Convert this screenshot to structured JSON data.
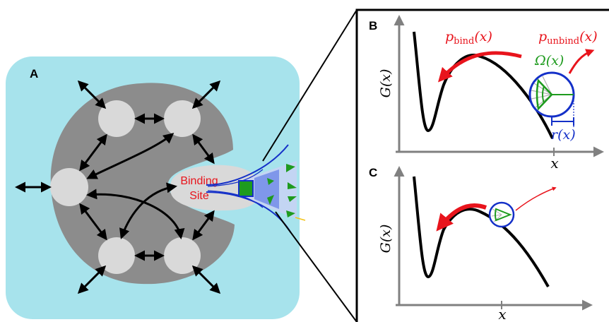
{
  "panels": {
    "a": {
      "letter": "A"
    },
    "b": {
      "letter": "B"
    },
    "c": {
      "letter": "C"
    }
  },
  "binding_site": {
    "line1": "Binding",
    "line2": "Site"
  },
  "labels": {
    "p_bind_main": "p",
    "p_bind_sub": "bind",
    "p_bind_arg": "(x)",
    "p_unbind_main": "p",
    "p_unbind_sub": "unbind",
    "p_unbind_arg": "(x)",
    "omega": "Ω(x)",
    "radius": "r(x)",
    "g_axis": "G(x)",
    "x_axis": "x"
  },
  "colors": {
    "protein_bg": "#a7e3ec",
    "protein_body": "#8c8c8c",
    "node": "#d9d9d9",
    "red": "#e8141c",
    "green": "#1e9b1e",
    "blue": "#1430c8",
    "axis": "#808080"
  }
}
